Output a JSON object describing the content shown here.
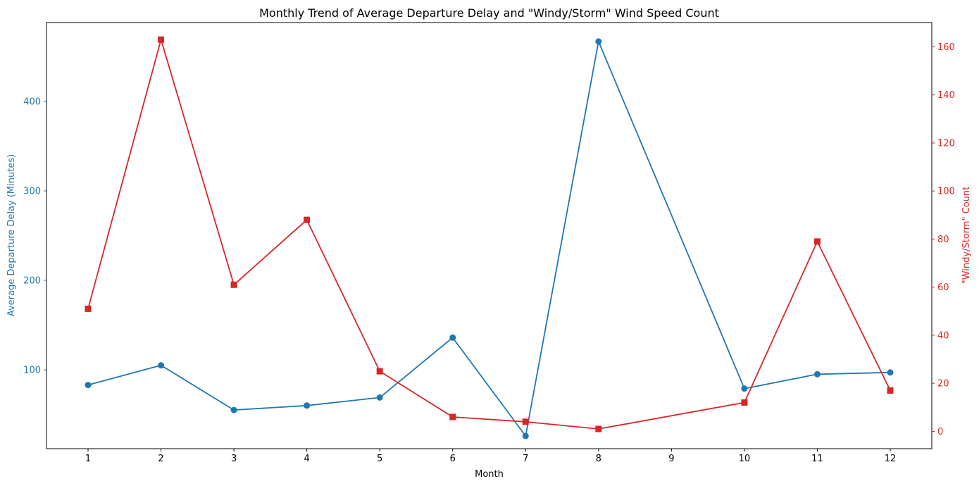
{
  "chart_data": {
    "type": "line",
    "title": "Monthly Trend of Average Departure Delay and \"Windy/Storm\" Wind Speed Count",
    "xlabel": "Month",
    "ylabel_left": "Average Departure Delay (Minutes)",
    "ylabel_right": "\"Windy/Storm\" Count",
    "x_ticks": [
      1,
      2,
      3,
      4,
      5,
      6,
      7,
      8,
      9,
      10,
      11,
      12
    ],
    "xlim": [
      0.43,
      12.57
    ],
    "ylim_left": [
      11.8,
      488.2
    ],
    "ylim_right": [
      -7.2,
      170.1
    ],
    "yticks_left": [
      100,
      200,
      300,
      400
    ],
    "yticks_right": [
      0,
      20,
      40,
      60,
      80,
      100,
      120,
      140,
      160
    ],
    "grid": false,
    "legend": "none",
    "colors": {
      "left_axis": "#1f77b4",
      "right_axis": "#d62728",
      "axes": "#000000"
    },
    "series": [
      {
        "axis": "left",
        "marker": "circle",
        "color": "#1f77b4",
        "x": [
          1,
          2,
          3,
          4,
          5,
          6,
          7,
          8,
          10,
          11,
          12
        ],
        "values": [
          83,
          105,
          55,
          60,
          69,
          136,
          26,
          467,
          79,
          95,
          97
        ]
      },
      {
        "axis": "right",
        "marker": "square",
        "color": "#d62728",
        "x": [
          1,
          2,
          3,
          4,
          5,
          6,
          7,
          8,
          10,
          11,
          12
        ],
        "values": [
          51,
          163,
          61,
          88,
          25,
          6,
          4,
          1,
          12,
          79,
          17
        ]
      }
    ]
  }
}
